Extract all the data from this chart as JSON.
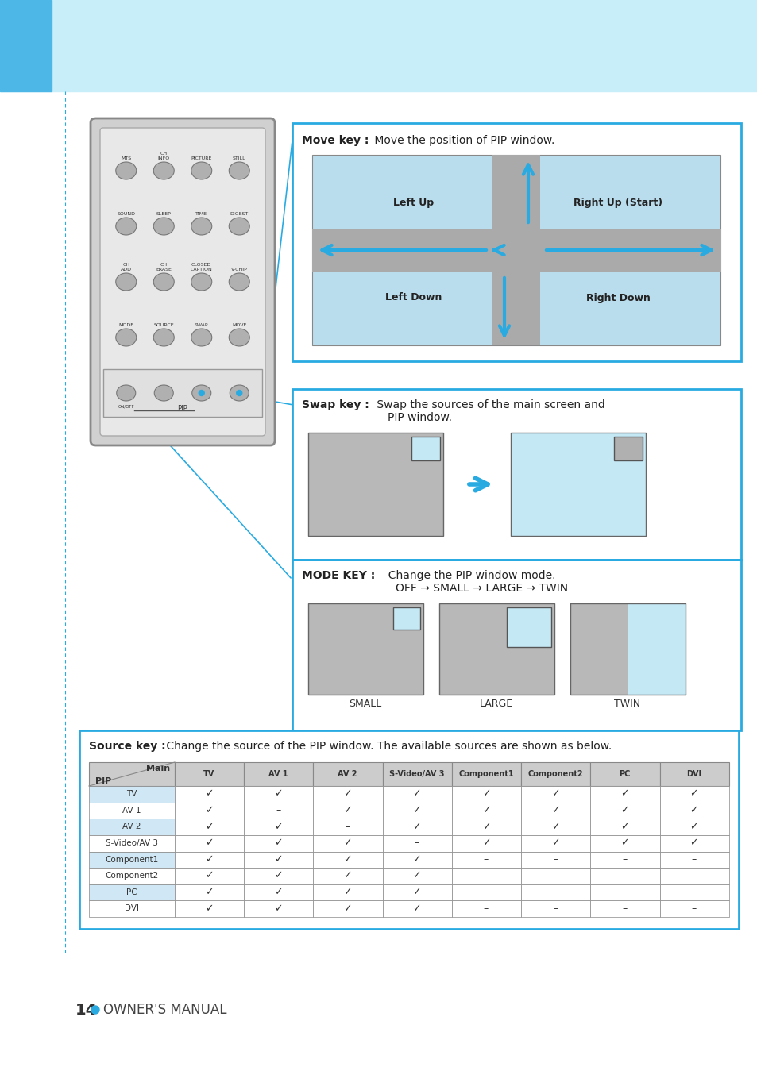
{
  "bg_color_left": "#4DB8E8",
  "bg_color_header": "#C8EEFA",
  "bg_color_main": "#FFFFFF",
  "border_color": "#29ABE2",
  "page_number": "14",
  "page_label": "OWNER'S MANUAL",
  "move_key_title": "Move key :",
  "move_key_desc": "Move the position of PIP window.",
  "move_positions": [
    "Left Up",
    "Right Up (Start)",
    "Left Down",
    "Right Down"
  ],
  "swap_key_title": "Swap key :",
  "swap_key_desc1": "Swap the sources of the main screen and",
  "swap_key_desc2": "PIP window.",
  "mode_key_title": "MODE KEY :",
  "mode_key_desc1": "Change the PIP window mode.",
  "mode_key_desc2": "OFF → SMALL → LARGE → TWIN",
  "mode_labels": [
    "SMALL",
    "LARGE",
    "TWIN"
  ],
  "source_key_title": "Source key :",
  "source_key_desc": "Change the source of the PIP window. The available sources are shown as below.",
  "table_pip_col": "PIP",
  "table_main_col": "Main",
  "table_columns": [
    "TV",
    "AV 1",
    "AV 2",
    "S-Video/AV 3",
    "Component1",
    "Component2",
    "PC",
    "DVI"
  ],
  "table_rows": [
    "TV",
    "AV 1",
    "AV 2",
    "S-Video/AV 3",
    "Component1",
    "Component2",
    "PC",
    "DVI"
  ],
  "table_data": [
    [
      "✓",
      "✓",
      "✓",
      "✓",
      "✓",
      "✓",
      "✓",
      "✓"
    ],
    [
      "✓",
      "–",
      "✓",
      "✓",
      "✓",
      "✓",
      "✓",
      "✓"
    ],
    [
      "✓",
      "✓",
      "–",
      "✓",
      "✓",
      "✓",
      "✓",
      "✓"
    ],
    [
      "✓",
      "✓",
      "✓",
      "–",
      "✓",
      "✓",
      "✓",
      "✓"
    ],
    [
      "✓",
      "✓",
      "✓",
      "✓",
      "–",
      "–",
      "–",
      "–"
    ],
    [
      "✓",
      "✓",
      "✓",
      "✓",
      "–",
      "–",
      "–",
      "–"
    ],
    [
      "✓",
      "✓",
      "✓",
      "✓",
      "–",
      "–",
      "–",
      "–"
    ],
    [
      "✓",
      "✓",
      "✓",
      "✓",
      "–",
      "–",
      "–",
      "–"
    ]
  ],
  "remote_buttons": [
    [
      "MTS",
      "CH\nINFO",
      "PICTURE",
      "STILL"
    ],
    [
      "SOUND",
      "SLEEP",
      "TIME",
      "DIGEST"
    ],
    [
      "CH\nADD",
      "CH\nERASE",
      "CLOSED\nCAPTION",
      "V-CHIP"
    ],
    [
      "MODE",
      "SOURCE",
      "SWAP",
      "MOVE"
    ]
  ],
  "pip_label": "PIP",
  "on_off_label": "ON/OFF"
}
